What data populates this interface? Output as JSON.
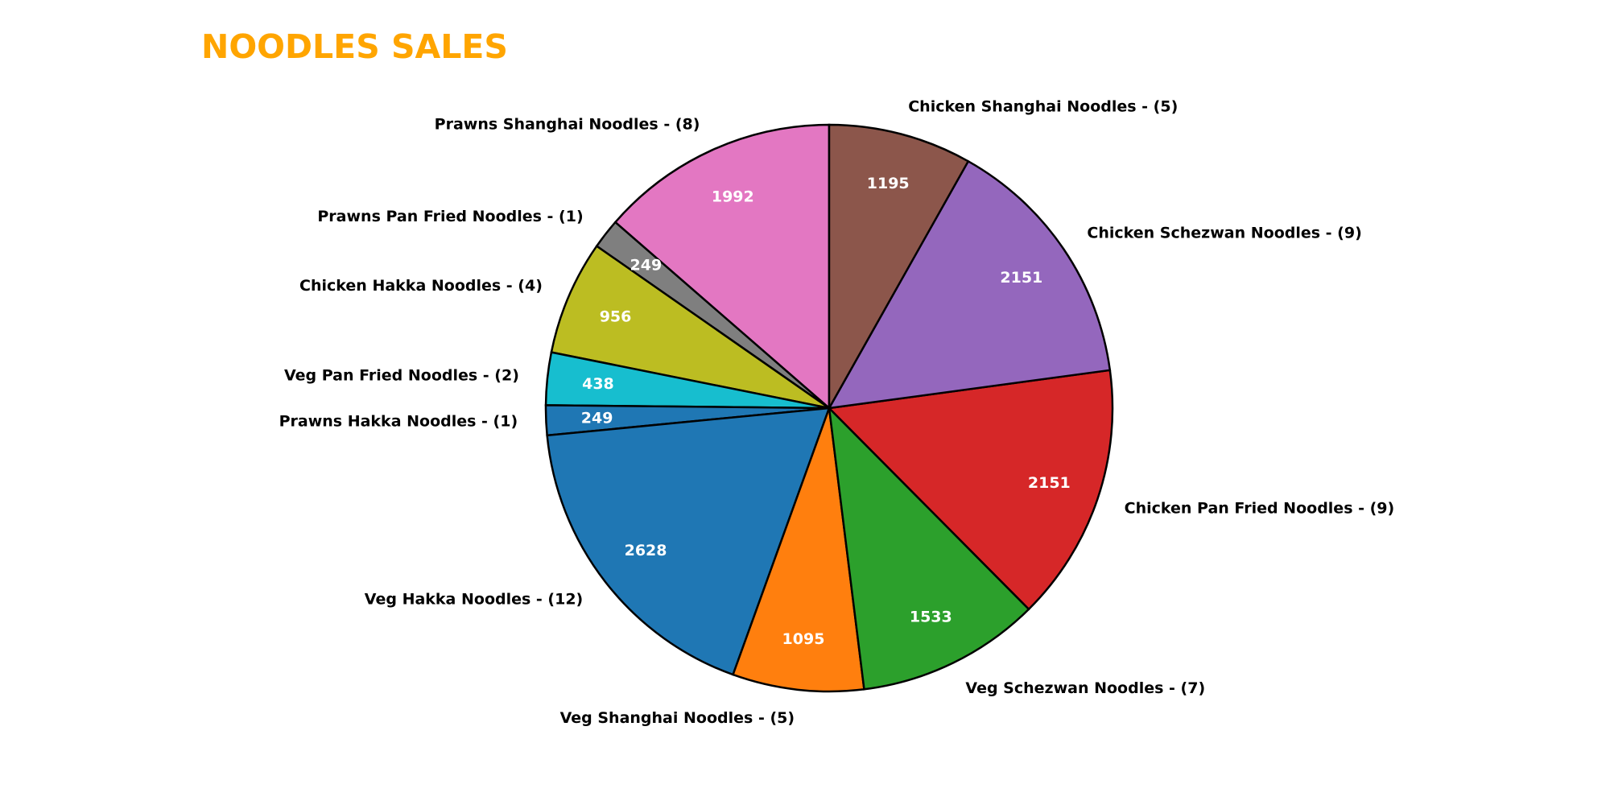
{
  "chart_data": {
    "type": "pie",
    "title": "NOODLES SALES",
    "startangle": 90,
    "counterclock": true,
    "colors": {
      "title": "#ffa500",
      "value_label": "#ffffff",
      "category_label": "#000000",
      "edge": "#000000"
    },
    "slices": [
      {
        "category": "Prawns Shanghai Noodles - (8)",
        "value": 1992,
        "value_label": "1992",
        "color": "#e377c2"
      },
      {
        "category": "Prawns Pan Fried Noodles - (1)",
        "value": 249,
        "value_label": "249",
        "color": "#7f7f7f"
      },
      {
        "category": "Chicken Hakka Noodles - (4)",
        "value": 956,
        "value_label": "956",
        "color": "#bcbd22"
      },
      {
        "category": "Veg Pan Fried Noodles - (2)",
        "value": 438,
        "value_label": "438",
        "color": "#17becf"
      },
      {
        "category": "Prawns Hakka Noodles - (1)",
        "value": 249,
        "value_label": "249",
        "color": "#1f77b4"
      },
      {
        "category": "Veg Hakka Noodles - (12)",
        "value": 2628,
        "value_label": "2628",
        "color": "#1f77b4"
      },
      {
        "category": "Veg Shanghai Noodles - (5)",
        "value": 1095,
        "value_label": "1095",
        "color": "#ff7f0e"
      },
      {
        "category": "Veg Schezwan Noodles - (7)",
        "value": 1533,
        "value_label": "1533",
        "color": "#2ca02c"
      },
      {
        "category": "Chicken Pan Fried Noodles - (9)",
        "value": 2151,
        "value_label": "2151",
        "color": "#d62728"
      },
      {
        "category": "Chicken Schezwan Noodles - (9)",
        "value": 2151,
        "value_label": "2151",
        "color": "#9467bd"
      },
      {
        "category": "Chicken Shanghai Noodles - (5)",
        "value": 1195,
        "value_label": "1195",
        "color": "#8c564b"
      }
    ]
  }
}
